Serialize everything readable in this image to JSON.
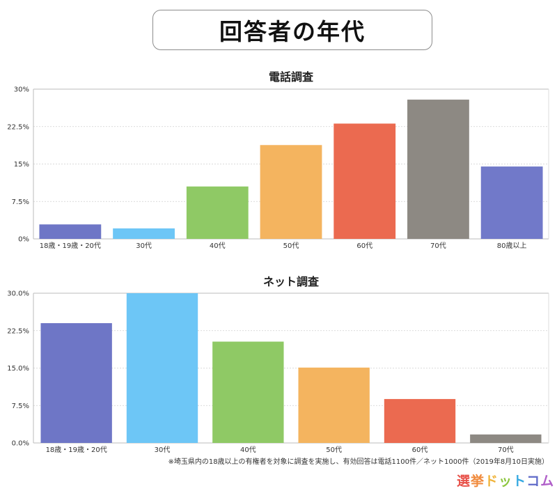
{
  "page": {
    "title": "回答者の年代",
    "footnote": "※埼玉県内の18歳以上の有権者を対象に調査を実施し、有効回答は電話1100件／ネット1000件（2019年8月10日実施）",
    "logo": [
      "選",
      "挙",
      "ド",
      "ッ",
      "ト",
      "コ",
      "ム"
    ],
    "logo_colors": [
      "#e8524a",
      "#f08a3c",
      "#f0b43c",
      "#8dc63f",
      "#36a9e1",
      "#5f6bc9",
      "#b05fc9"
    ]
  },
  "chart_data": [
    {
      "type": "bar",
      "title": "電話調査",
      "categories": [
        "18歳・19歳・20代",
        "30代",
        "40代",
        "50代",
        "60代",
        "70代",
        "80歳以上"
      ],
      "values": [
        2.9,
        2.1,
        10.5,
        18.8,
        23.1,
        27.9,
        14.5
      ],
      "ylim": [
        0,
        30
      ],
      "yticks": [
        0,
        7.5,
        15,
        22.5,
        30
      ],
      "ytick_labels": [
        "0%",
        "7.5%",
        "15%",
        "22.5%",
        "30%"
      ],
      "colors": [
        "#6e76c6",
        "#6dc6f6",
        "#8fc965",
        "#f4b45f",
        "#eb6a50",
        "#8d8983",
        "#7179c9"
      ],
      "grid": true
    },
    {
      "type": "bar",
      "title": "ネット調査",
      "categories": [
        "18歳・19歳・20代",
        "30代",
        "40代",
        "50代",
        "60代",
        "70代"
      ],
      "values": [
        24.0,
        30.0,
        20.3,
        15.1,
        8.8,
        1.7
      ],
      "ylim": [
        0,
        30
      ],
      "yticks": [
        0,
        7.5,
        15,
        22.5,
        30
      ],
      "ytick_labels": [
        "0.0%",
        "7.5%",
        "15.0%",
        "22.5%",
        "30.0%"
      ],
      "colors": [
        "#6e76c6",
        "#6dc6f6",
        "#8fc965",
        "#f4b45f",
        "#eb6a50",
        "#8d8983"
      ],
      "grid": true
    }
  ]
}
